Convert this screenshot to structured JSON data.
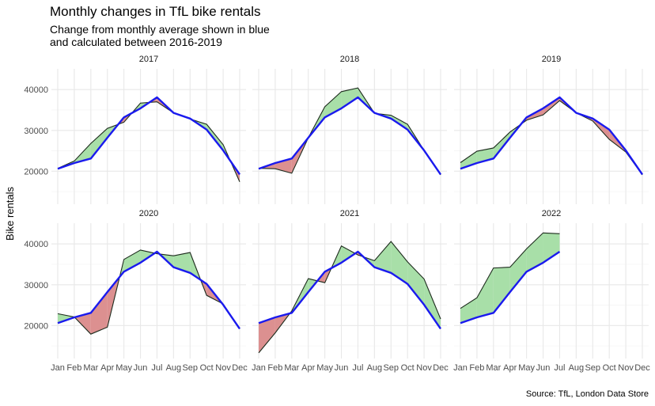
{
  "title": "Monthly changes in TfL bike rentals",
  "subtitle_line1": "Change from monthly average shown in blue",
  "subtitle_line2": "and calculated between 2016-2019",
  "caption": "Source: TfL, London Data Store",
  "colors": {
    "average_line": "#1a1aee",
    "above_fill": "#a8dfa8",
    "below_fill": "#dc9090",
    "actual_line": "#1d2b1d",
    "grid_major": "#e8e8e8",
    "grid_minor": "#f2f2f2"
  },
  "chart_data": {
    "type": "area",
    "ylabel": "Bike rentals",
    "xlabel": "",
    "ylim": [
      12500,
      44500
    ],
    "y_ticks": [
      20000,
      30000,
      40000
    ],
    "categories": [
      "Jan",
      "Feb",
      "Mar",
      "Apr",
      "May",
      "Jun",
      "Jul",
      "Aug",
      "Sep",
      "Oct",
      "Nov",
      "Dec"
    ],
    "grid": true,
    "average": [
      20600,
      22000,
      23100,
      28200,
      33200,
      35400,
      38100,
      34300,
      32900,
      30200,
      25100,
      19200
    ],
    "panels": [
      {
        "label": "2017",
        "values": [
          20700,
          22500,
          26800,
          30500,
          32000,
          36700,
          37000,
          34300,
          32800,
          31500,
          26500,
          17400
        ]
      },
      {
        "label": "2018",
        "values": [
          20700,
          20600,
          19500,
          28200,
          35800,
          39500,
          40400,
          34200,
          33700,
          31500,
          25100,
          19100
        ]
      },
      {
        "label": "2019",
        "values": [
          22100,
          24900,
          25700,
          29600,
          32500,
          33800,
          37300,
          34300,
          32300,
          27800,
          24700,
          19100
        ]
      },
      {
        "label": "2020",
        "values": [
          22900,
          22100,
          17900,
          19600,
          36200,
          38500,
          37600,
          37100,
          37900,
          27400,
          25300,
          19200
        ]
      },
      {
        "label": "2021",
        "values": [
          13300,
          18200,
          23600,
          31500,
          30500,
          39500,
          37300,
          35900,
          40600,
          35600,
          31400,
          21600
        ]
      },
      {
        "label": "2022",
        "values": [
          24200,
          26800,
          34100,
          34300,
          38800,
          42700,
          42500
        ]
      }
    ]
  }
}
